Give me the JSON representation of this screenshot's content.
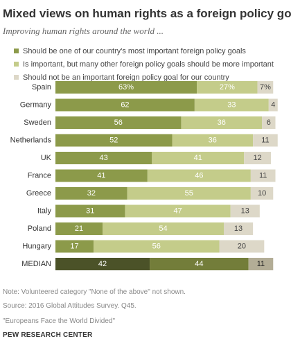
{
  "title": "Mixed views on human rights as a foreign policy goal",
  "subtitle": "Improving human rights around the world ...",
  "colors": {
    "important": "#8c9a4a",
    "some": "#c4cc8a",
    "not": "#ddd8c8",
    "median_important": "#4b5228",
    "median_some": "#737d3a",
    "median_not": "#b3ad96"
  },
  "chart_data": {
    "type": "bar",
    "orientation": "horizontal",
    "stacked": true,
    "categories": [
      "Spain",
      "Germany",
      "Sweden",
      "Netherlands",
      "UK",
      "France",
      "Greece",
      "Italy",
      "Poland",
      "Hungary",
      "MEDIAN"
    ],
    "series": [
      {
        "name": "Should be one of our country's most important foreign policy goals",
        "values": [
          63,
          62,
          56,
          52,
          43,
          41,
          32,
          31,
          21,
          17,
          42
        ]
      },
      {
        "name": "Is important, but many other foreign policy goals should be more important",
        "values": [
          27,
          33,
          36,
          36,
          41,
          46,
          55,
          47,
          54,
          56,
          44
        ]
      },
      {
        "name": "Should not be an important foreign policy goal for our country",
        "values": [
          7,
          4,
          6,
          11,
          12,
          11,
          10,
          13,
          13,
          20,
          11
        ]
      }
    ],
    "value_labels": [
      [
        "63%",
        "62",
        "56",
        "52",
        "43",
        "41",
        "32",
        "31",
        "21",
        "17",
        "42"
      ],
      [
        "27%",
        "33",
        "36",
        "36",
        "41",
        "46",
        "55",
        "47",
        "54",
        "56",
        "44"
      ],
      [
        "7%",
        "4",
        "6",
        "11",
        "12",
        "11",
        "10",
        "13",
        "13",
        "20",
        "11"
      ]
    ],
    "legend_position": "top",
    "grid": false
  },
  "footer": {
    "note": "Note: Volunteered category \"None of the above\" not shown.",
    "source": "Source: 2016 Global Attitudes Survey. Q45.",
    "report": "\"Europeans Face the World Divided\"",
    "brand": "PEW RESEARCH CENTER"
  }
}
